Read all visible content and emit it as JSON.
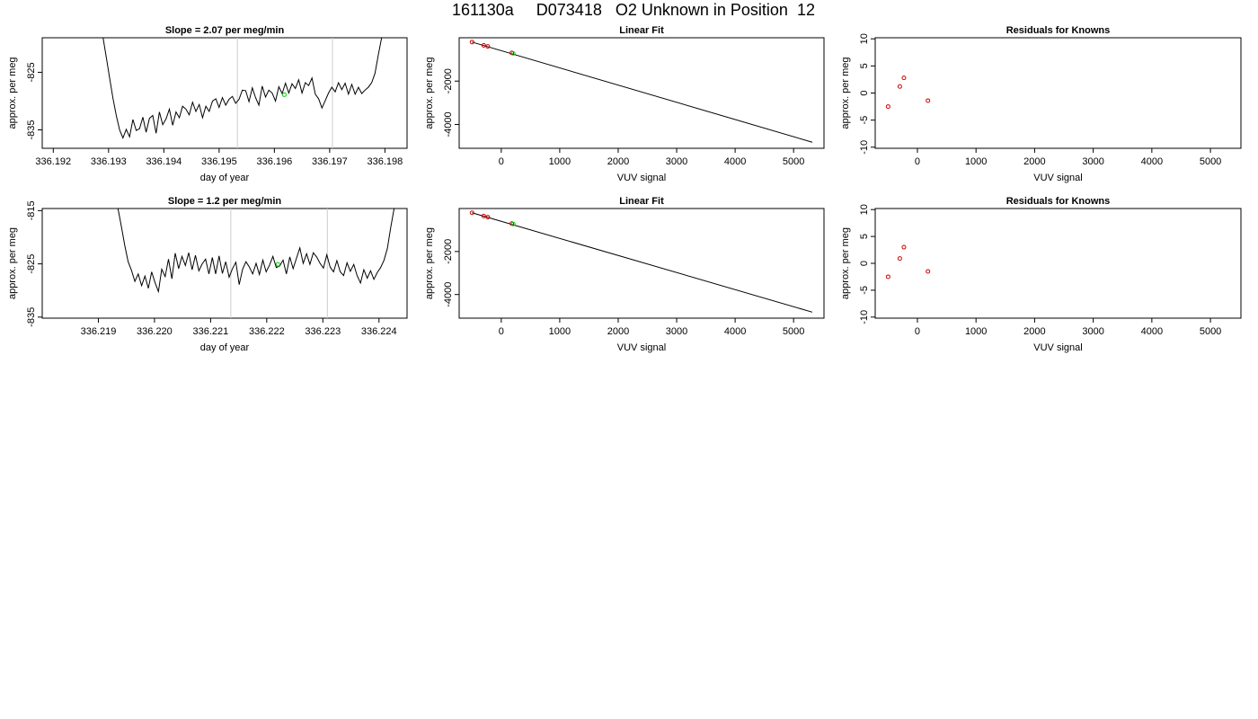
{
  "main_title": "161130a     D073418   O2 Unknown in Position  12",
  "chart_data": [
    {
      "type": "line",
      "title": "Slope =  2.07  per meg/min",
      "xlabel": "day of year",
      "ylabel": "approx. per meg",
      "xlim": [
        336.1918,
        336.1984
      ],
      "ylim": [
        -838.2,
        -819.0
      ],
      "xticks": [
        "336.192",
        "336.193",
        "336.194",
        "336.195",
        "336.196",
        "336.197",
        "336.198"
      ],
      "yticks": [
        "-825",
        "-835"
      ],
      "vlines": [
        336.19533,
        336.19705
      ],
      "vline_color": "#cccccc",
      "line_color": "#000000",
      "marker": {
        "x": 336.19618,
        "y": -828.9,
        "color": "#00cc00"
      },
      "series": [
        {
          "x": [
            336.1929,
            336.19296,
            336.19302,
            336.19308,
            336.19314,
            336.1932,
            336.19326,
            336.19332,
            336.19338,
            336.19344,
            336.1935,
            336.19356,
            336.19362,
            336.19368,
            336.19374,
            336.1938,
            336.19386,
            336.19392,
            336.19398,
            336.19404,
            336.1941,
            336.19416,
            336.19422,
            336.19428,
            336.19434,
            336.1944,
            336.19446,
            336.19452,
            336.19458,
            336.19464,
            336.1947,
            336.19476,
            336.19482,
            336.19488,
            336.19494,
            336.195,
            336.19506,
            336.19512,
            336.19518,
            336.19524,
            336.1953,
            336.19536,
            336.19542,
            336.19548,
            336.19554,
            336.1956,
            336.19566,
            336.19572,
            336.19578,
            336.19584,
            336.1959,
            336.19596,
            336.19602,
            336.19608,
            336.19614,
            336.1962,
            336.19626,
            336.19632,
            336.19638,
            336.19644,
            336.1965,
            336.19656,
            336.19662,
            336.19668,
            336.19674,
            336.1968,
            336.19686,
            336.19692,
            336.19698,
            336.19704,
            336.1971,
            336.19716,
            336.19722,
            336.19728,
            336.19734,
            336.1974,
            336.19746,
            336.19752,
            336.19758,
            336.19764,
            336.1977,
            336.19776,
            336.19782,
            336.19788,
            336.19794,
            336.198,
            336.19806
          ],
          "y": [
            -819.0,
            -822.5,
            -826.0,
            -829.5,
            -832.5,
            -835.0,
            -836.4,
            -834.9,
            -836.2,
            -833.2,
            -835.1,
            -834.8,
            -832.8,
            -835.4,
            -833.0,
            -832.5,
            -835.6,
            -831.9,
            -834.1,
            -833.1,
            -831.4,
            -834.2,
            -831.9,
            -832.9,
            -830.9,
            -831.4,
            -832.4,
            -830.2,
            -831.8,
            -830.6,
            -832.9,
            -830.9,
            -831.8,
            -830.0,
            -829.6,
            -831.1,
            -829.4,
            -830.7,
            -829.7,
            -829.2,
            -830.4,
            -829.7,
            -828.1,
            -828.2,
            -830.1,
            -827.7,
            -829.4,
            -830.7,
            -827.4,
            -829.3,
            -828.1,
            -828.6,
            -830.0,
            -827.5,
            -828.7,
            -826.9,
            -828.6,
            -827.0,
            -827.8,
            -826.3,
            -828.6,
            -826.8,
            -827.3,
            -826.0,
            -828.8,
            -829.6,
            -831.2,
            -829.9,
            -828.6,
            -827.6,
            -828.4,
            -826.8,
            -828.0,
            -826.9,
            -828.8,
            -827.1,
            -828.8,
            -827.6,
            -828.7,
            -828.1,
            -827.6,
            -826.8,
            -825.2,
            -822.0,
            -819.0,
            -819.0,
            -819.0
          ]
        }
      ]
    },
    {
      "type": "line",
      "title": "Linear Fit",
      "xlabel": "VUV signal",
      "ylabel": "approx. per meg",
      "xlim": [
        -720,
        5520
      ],
      "ylim": [
        -5100,
        0
      ],
      "xticks": [
        "0",
        "1000",
        "2000",
        "3000",
        "4000",
        "5000"
      ],
      "yticks": [
        "-2000",
        "-4000"
      ],
      "fit_line": {
        "x": [
          -500,
          5320
        ],
        "y": [
          -200,
          -4820
        ],
        "color": "#000000"
      },
      "points_known": {
        "x": [
          -500,
          -300,
          -230,
          180
        ],
        "y": [
          -200,
          -350,
          -400,
          -700
        ],
        "color": "#cc0000"
      },
      "points_unknown": {
        "x": [
          205
        ],
        "y": [
          -720
        ],
        "color": "#00cc00"
      }
    },
    {
      "type": "scatter",
      "title": "Residuals for Knowns",
      "xlabel": "VUV signal",
      "ylabel": "approx. per meg",
      "xlim": [
        -720,
        5520
      ],
      "ylim": [
        -10.2,
        10.2
      ],
      "xticks": [
        "0",
        "1000",
        "2000",
        "3000",
        "4000",
        "5000"
      ],
      "yticks": [
        "-10",
        "-5",
        "0",
        "5",
        "10"
      ],
      "points": {
        "x": [
          -500,
          -300,
          -230,
          180
        ],
        "y": [
          -2.5,
          1.2,
          2.8,
          -1.4
        ],
        "color": "#cc0000"
      }
    },
    {
      "type": "line",
      "title": "Slope =  1.2  per meg/min",
      "xlabel": "day of year",
      "ylabel": "approx. per meg",
      "xlim": [
        336.218,
        336.2245
      ],
      "ylim": [
        -835.2,
        -814.6
      ],
      "xticks": [
        "336.219",
        "336.220",
        "336.221",
        "336.222",
        "336.223",
        "336.224"
      ],
      "yticks": [
        "-815",
        "-825",
        "-835"
      ],
      "vlines": [
        336.22136,
        336.22308
      ],
      "vline_color": "#cccccc",
      "line_color": "#000000",
      "marker": {
        "x": 336.2222,
        "y": -825.1,
        "color": "#00cc00"
      },
      "series": [
        {
          "x": [
            336.21935,
            336.21941,
            336.21947,
            336.21953,
            336.21959,
            336.21965,
            336.21971,
            336.21977,
            336.21983,
            336.21989,
            336.21995,
            336.22001,
            336.22007,
            336.22013,
            336.22019,
            336.22025,
            336.22031,
            336.22037,
            336.22043,
            336.22049,
            336.22055,
            336.22061,
            336.22067,
            336.22073,
            336.22079,
            336.22085,
            336.22091,
            336.22097,
            336.22103,
            336.22109,
            336.22115,
            336.22121,
            336.22127,
            336.22133,
            336.22139,
            336.22145,
            336.22151,
            336.22157,
            336.22163,
            336.22169,
            336.22175,
            336.22181,
            336.22187,
            336.22193,
            336.22199,
            336.22205,
            336.22211,
            336.22217,
            336.22223,
            336.22229,
            336.22235,
            336.22241,
            336.22247,
            336.22253,
            336.22259,
            336.22265,
            336.22271,
            336.22277,
            336.22283,
            336.22289,
            336.22295,
            336.22301,
            336.22307,
            336.22313,
            336.22319,
            336.22325,
            336.22331,
            336.22337,
            336.22343,
            336.22349,
            336.22355,
            336.22361,
            336.22367,
            336.22373,
            336.22379,
            336.22385,
            336.22391,
            336.22397,
            336.22403,
            336.22409,
            336.22415,
            336.22421,
            336.22427
          ],
          "y": [
            -814.6,
            -818.0,
            -821.5,
            -824.6,
            -826.2,
            -828.3,
            -826.9,
            -829.1,
            -827.3,
            -829.6,
            -826.5,
            -828.5,
            -830.2,
            -826.0,
            -827.4,
            -824.1,
            -827.8,
            -823.0,
            -825.9,
            -823.6,
            -825.3,
            -822.9,
            -826.1,
            -823.4,
            -826.3,
            -825.0,
            -824.1,
            -826.9,
            -823.8,
            -826.9,
            -823.5,
            -826.8,
            -824.6,
            -827.5,
            -825.9,
            -824.7,
            -828.9,
            -826.0,
            -824.6,
            -825.6,
            -826.9,
            -824.9,
            -827.0,
            -824.3,
            -826.5,
            -825.2,
            -823.6,
            -825.7,
            -825.4,
            -824.3,
            -826.9,
            -823.7,
            -825.9,
            -823.9,
            -822.0,
            -824.9,
            -823.1,
            -825.1,
            -822.9,
            -823.7,
            -824.9,
            -825.8,
            -823.3,
            -825.6,
            -826.5,
            -824.4,
            -826.5,
            -827.2,
            -824.8,
            -826.4,
            -825.1,
            -827.2,
            -828.6,
            -826.1,
            -827.7,
            -826.3,
            -827.9,
            -826.6,
            -825.7,
            -824.3,
            -822.1,
            -818.1,
            -814.6
          ]
        }
      ]
    },
    {
      "type": "line",
      "title": "Linear Fit",
      "xlabel": "VUV signal",
      "ylabel": "approx. per meg",
      "xlim": [
        -720,
        5520
      ],
      "ylim": [
        -5100,
        0
      ],
      "xticks": [
        "0",
        "1000",
        "2000",
        "3000",
        "4000",
        "5000"
      ],
      "yticks": [
        "-2000",
        "-4000"
      ],
      "fit_line": {
        "x": [
          -500,
          5320
        ],
        "y": [
          -200,
          -4820
        ],
        "color": "#000000"
      },
      "points_known": {
        "x": [
          -500,
          -300,
          -230,
          180
        ],
        "y": [
          -200,
          -350,
          -400,
          -700
        ],
        "color": "#cc0000"
      },
      "points_unknown": {
        "x": [
          205
        ],
        "y": [
          -720
        ],
        "color": "#00cc00"
      }
    },
    {
      "type": "scatter",
      "title": "Residuals for Knowns",
      "xlabel": "VUV signal",
      "ylabel": "approx. per meg",
      "xlim": [
        -720,
        5520
      ],
      "ylim": [
        -10.2,
        10.2
      ],
      "xticks": [
        "0",
        "1000",
        "2000",
        "3000",
        "4000",
        "5000"
      ],
      "yticks": [
        "-10",
        "-5",
        "0",
        "5",
        "10"
      ],
      "points": {
        "x": [
          -500,
          -300,
          -230,
          180
        ],
        "y": [
          -2.5,
          0.9,
          3.0,
          -1.5
        ],
        "color": "#cc0000"
      }
    }
  ]
}
